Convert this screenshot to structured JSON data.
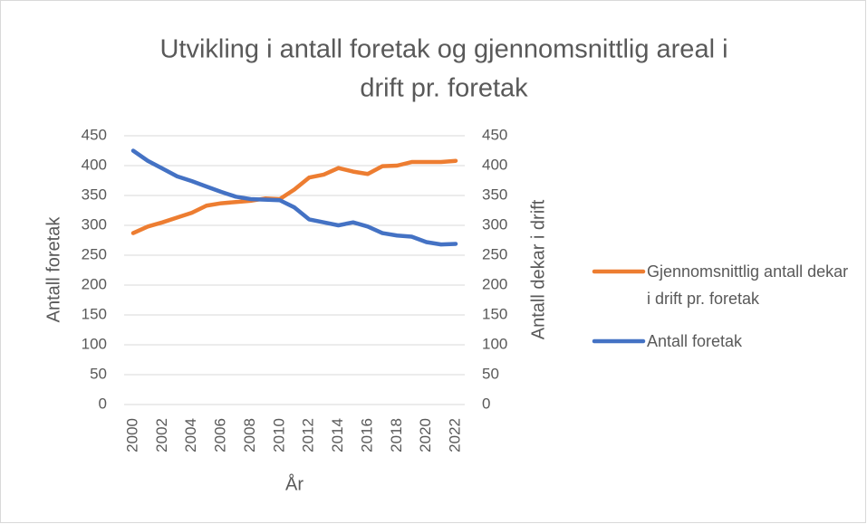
{
  "chart_data": {
    "type": "line",
    "title": "Utvikling i antall foretak og gjennomsnittlig areal i drift pr. foretak",
    "title_lines": [
      "Utvikling i antall foretak og gjennomsnittlig areal i",
      "drift pr. foretak"
    ],
    "x_label": "År",
    "y_label": "Antall foretak",
    "y2_label": "Antall dekar i drift",
    "x": [
      2000,
      2001,
      2002,
      2003,
      2004,
      2005,
      2006,
      2007,
      2008,
      2009,
      2010,
      2011,
      2012,
      2013,
      2014,
      2015,
      2016,
      2017,
      2018,
      2019,
      2020,
      2021,
      2022
    ],
    "xlim": [
      2000,
      2022
    ],
    "xticks": [
      2000,
      2002,
      2004,
      2006,
      2008,
      2010,
      2012,
      2014,
      2016,
      2018,
      2020,
      2022
    ],
    "ylim": [
      0,
      450
    ],
    "yticks": [
      0,
      50,
      100,
      150,
      200,
      250,
      300,
      350,
      400,
      450
    ],
    "y2lim": [
      0,
      450
    ],
    "y2ticks": [
      0,
      50,
      100,
      150,
      200,
      250,
      300,
      350,
      400,
      450
    ],
    "grid": true,
    "legend": "right",
    "series": [
      {
        "name": "Gjennomsnittlig antall dekar i drift pr. foretak",
        "color": "#ed7d31",
        "axis": "y2",
        "values": [
          287,
          298,
          305,
          313,
          321,
          333,
          337,
          339,
          341,
          345,
          344,
          360,
          380,
          385,
          396,
          390,
          386,
          399,
          400,
          406,
          406,
          406,
          408
        ]
      },
      {
        "name": "Antall foretak",
        "color": "#4472c4",
        "values": [
          425,
          408,
          395,
          382,
          374,
          365,
          356,
          348,
          344,
          343,
          342,
          330,
          310,
          305,
          300,
          305,
          298,
          287,
          283,
          281,
          272,
          268,
          269
        ]
      }
    ]
  }
}
